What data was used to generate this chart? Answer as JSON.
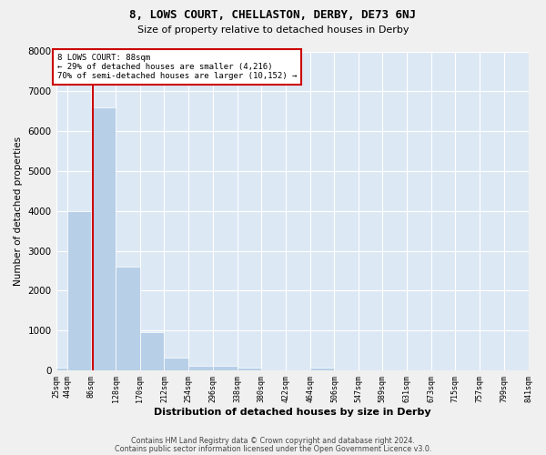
{
  "title1": "8, LOWS COURT, CHELLASTON, DERBY, DE73 6NJ",
  "title2": "Size of property relative to detached houses in Derby",
  "xlabel": "Distribution of detached houses by size in Derby",
  "ylabel": "Number of detached properties",
  "footer1": "Contains HM Land Registry data © Crown copyright and database right 2024.",
  "footer2": "Contains public sector information licensed under the Open Government Licence v3.0.",
  "annotation_line1": "8 LOWS COURT: 88sqm",
  "annotation_line2": "← 29% of detached houses are smaller (4,216)",
  "annotation_line3": "70% of semi-detached houses are larger (10,152) →",
  "bin_lefts": [
    25,
    44,
    86,
    128,
    170,
    212,
    254,
    296,
    338,
    380,
    422,
    464,
    506,
    547,
    589,
    631,
    673,
    715,
    757,
    799
  ],
  "bin_rights": [
    44,
    86,
    128,
    170,
    212,
    254,
    296,
    338,
    380,
    422,
    464,
    506,
    547,
    589,
    631,
    673,
    715,
    757,
    799,
    841
  ],
  "bar_heights": [
    80,
    4000,
    6600,
    2600,
    950,
    320,
    120,
    120,
    80,
    0,
    0,
    80,
    0,
    0,
    0,
    0,
    0,
    0,
    0,
    0
  ],
  "bar_color": "#b8cfe8",
  "property_size": 88,
  "vline_color": "#cc0000",
  "annotation_box_edge": "#cc0000",
  "plot_bg_color": "#dde8f5",
  "fig_bg_color": "#f0f0f0",
  "ylim": [
    0,
    8000
  ],
  "yticks": [
    0,
    1000,
    2000,
    3000,
    4000,
    5000,
    6000,
    7000,
    8000
  ],
  "xtick_positions": [
    25,
    44,
    86,
    128,
    170,
    212,
    254,
    296,
    338,
    380,
    422,
    464,
    506,
    547,
    589,
    631,
    673,
    715,
    757,
    799,
    841
  ],
  "xtick_labels": [
    "25sqm",
    "44sqm",
    "86sqm",
    "128sqm",
    "170sqm",
    "212sqm",
    "254sqm",
    "296sqm",
    "338sqm",
    "380sqm",
    "422sqm",
    "464sqm",
    "506sqm",
    "547sqm",
    "589sqm",
    "631sqm",
    "673sqm",
    "715sqm",
    "757sqm",
    "799sqm",
    "841sqm"
  ]
}
